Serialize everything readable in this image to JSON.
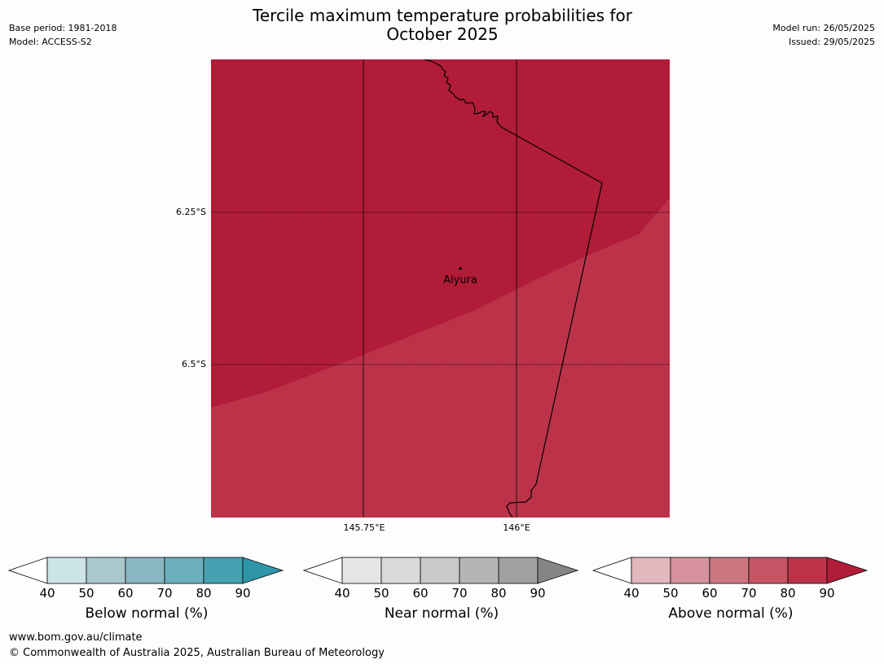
{
  "title": {
    "line1": "Tercile maximum temperature probabilities for",
    "line2": "October 2025"
  },
  "meta_left": {
    "base_period": "Base period: 1981-2018",
    "model": "Model: ACCESS-S2"
  },
  "meta_right": {
    "model_run": "Model run: 26/05/2025",
    "issued": "Issued: 29/05/2025"
  },
  "map": {
    "lat_labels": [
      "6.25°S",
      "6.5°S"
    ],
    "lon_labels": [
      "145.75°E",
      "146°E"
    ],
    "place": "Aiyura",
    "colors": {
      "above_90": "#b11c38",
      "above_80": "#bc3349"
    },
    "regions": [
      {
        "category": "above",
        "probability_band": "≥90"
      },
      {
        "category": "above",
        "probability_band": "80-90"
      }
    ]
  },
  "colorbars": [
    {
      "label": "Below normal (%)",
      "ticks": [
        "40",
        "50",
        "60",
        "70",
        "80",
        "90"
      ],
      "colors": [
        "#ffffff",
        "#cce3e8",
        "#aac7cd",
        "#8bb6c3",
        "#6cafbd",
        "#47a0b1",
        "#2e96a8"
      ]
    },
    {
      "label": "Near normal (%)",
      "ticks": [
        "40",
        "50",
        "60",
        "70",
        "80",
        "90"
      ],
      "colors": [
        "#ffffff",
        "#e6e6e6",
        "#d9d9d9",
        "#c9c9c9",
        "#b5b5b5",
        "#a0a0a0",
        "#858585"
      ]
    },
    {
      "label": "Above normal (%)",
      "ticks": [
        "40",
        "50",
        "60",
        "70",
        "80",
        "90"
      ],
      "colors": [
        "#ffffff",
        "#e2b7bd",
        "#d6939d",
        "#cc7780",
        "#c55565",
        "#bc3349",
        "#b11c38"
      ]
    }
  ],
  "footer": {
    "url": "www.bom.gov.au/climate",
    "copyright": "© Commonwealth of Australia 2025, Australian Bureau of Meteorology"
  }
}
